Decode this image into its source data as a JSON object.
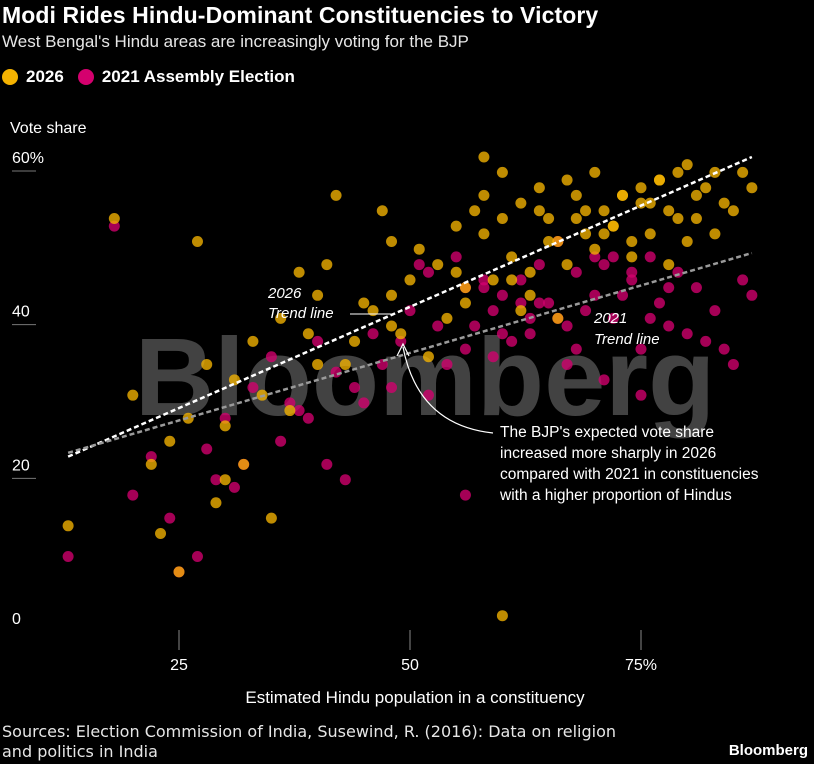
{
  "header": {
    "title": "Modi Rides Hindu-Dominant Constituencies to Victory",
    "subtitle": "West Bengal's Hindu areas are increasingly voting for the BJP"
  },
  "colors": {
    "s2026": "#f5b301",
    "s2021": "#d4006e",
    "background": "#000000"
  },
  "footer": {
    "source": "Sources: Election Commission of India, Susewind, R. (2016): Data on religion and politics in India",
    "brand": "Bloomberg",
    "watermark": "Bloomberg"
  },
  "annotations": {
    "trend2026": "2026 Trend line",
    "trend2021": "2021 Trend line",
    "note": "The BJP's expected vote share increased more sharply in 2026 compared with 2021 in constituencies with a higher proportion of Hindus"
  },
  "chart_data": {
    "type": "scatter",
    "title": "Modi Rides Hindu-Dominant Constituencies to Victory",
    "xlabel": "Estimated Hindu population in a constituency",
    "ylabel": "Vote share",
    "xlim": [
      8,
      88
    ],
    "ylim": [
      0,
      62
    ],
    "x_ticks": [
      25,
      50,
      75
    ],
    "x_tick_labels": [
      "25",
      "50",
      "75%"
    ],
    "y_ticks": [
      0,
      20,
      40,
      60
    ],
    "y_tick_labels": [
      "0",
      "20",
      "40",
      "60%"
    ],
    "legend": [
      "2026",
      "2021 Assembly Election"
    ],
    "legend_position": "top-left",
    "grid": false,
    "trend_lines": [
      {
        "name": "2026 Trend line",
        "x": [
          13,
          87
        ],
        "y": [
          21,
          60
        ]
      },
      {
        "name": "2021 Trend line",
        "x": [
          13,
          87
        ],
        "y": [
          21.5,
          47.5
        ]
      }
    ],
    "series": [
      {
        "name": "2026",
        "x": [
          13,
          18,
          20,
          22,
          23,
          24,
          25,
          26,
          27,
          28,
          29,
          30,
          30,
          31,
          32,
          33,
          34,
          35,
          36,
          37,
          38,
          39,
          40,
          40,
          41,
          42,
          43,
          44,
          45,
          46,
          47,
          48,
          48,
          49,
          50,
          51,
          52,
          53,
          54,
          55,
          56,
          57,
          58,
          58,
          59,
          60,
          60,
          61,
          62,
          63,
          64,
          65,
          66,
          67,
          68,
          69,
          70,
          71,
          72,
          73,
          74,
          75,
          76,
          77,
          78,
          79,
          80,
          81,
          82,
          83,
          84,
          85,
          86,
          87,
          60,
          48,
          56,
          62,
          66,
          70,
          74,
          78,
          83,
          58,
          64,
          68,
          72,
          76,
          80,
          55,
          61,
          65,
          69,
          73,
          77,
          81,
          63,
          67,
          71,
          75,
          79
        ],
        "y": [
          12,
          52,
          29,
          20,
          11,
          23,
          6,
          26,
          49,
          33,
          15,
          25,
          18,
          31,
          20,
          36,
          29,
          13,
          39,
          27,
          45,
          37,
          33,
          42,
          46,
          55,
          33,
          36,
          41,
          40,
          53,
          49,
          38,
          37,
          44,
          48,
          34,
          46,
          39,
          51,
          43,
          53,
          50,
          60,
          44,
          52,
          0.3,
          47,
          54,
          45,
          56,
          52,
          49,
          57,
          55,
          50,
          58,
          53,
          51,
          55,
          49,
          56,
          54,
          57,
          53,
          52,
          59,
          55,
          56,
          58,
          54,
          53,
          58,
          56,
          58,
          42,
          41,
          40,
          39,
          48,
          47,
          46,
          50,
          55,
          53,
          52,
          51,
          50,
          49,
          45,
          44,
          49,
          53,
          55,
          57,
          52,
          42,
          46,
          50,
          54,
          58
        ]
      },
      {
        "name": "2021 Assembly Election",
        "x": [
          13,
          18,
          20,
          22,
          24,
          25,
          27,
          28,
          29,
          30,
          31,
          32,
          33,
          35,
          36,
          37,
          38,
          39,
          40,
          41,
          42,
          43,
          44,
          45,
          46,
          47,
          48,
          49,
          50,
          51,
          52,
          53,
          54,
          55,
          56,
          56,
          57,
          58,
          59,
          60,
          61,
          62,
          63,
          64,
          65,
          66,
          67,
          68,
          69,
          70,
          71,
          72,
          73,
          74,
          75,
          76,
          77,
          78,
          79,
          80,
          81,
          82,
          83,
          84,
          85,
          86,
          87,
          56,
          60,
          64,
          68,
          72,
          76,
          52,
          58,
          62,
          66,
          70,
          74,
          78,
          59,
          63,
          67,
          71,
          75
        ],
        "y": [
          8,
          51,
          16,
          21,
          13,
          6,
          8,
          22,
          18,
          26,
          17,
          20,
          30,
          34,
          23,
          28,
          27,
          26,
          36,
          20,
          32,
          18,
          30,
          28,
          37,
          33,
          30,
          36,
          40,
          46,
          29,
          38,
          33,
          47,
          43,
          16,
          38,
          44,
          34,
          42,
          36,
          44,
          39,
          46,
          41,
          49,
          38,
          45,
          40,
          42,
          46,
          39,
          42,
          44,
          35,
          47,
          41,
          38,
          45,
          37,
          43,
          36,
          40,
          35,
          33,
          44,
          42,
          35,
          37,
          41,
          35,
          47,
          39,
          45,
          43,
          41,
          39,
          47,
          45,
          43,
          40,
          37,
          33,
          31,
          29
        ]
      }
    ]
  }
}
